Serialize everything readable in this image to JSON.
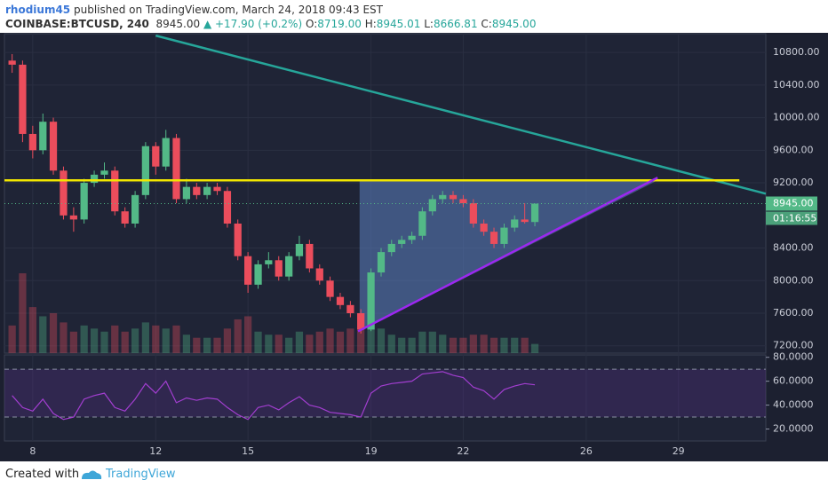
{
  "header": {
    "author": "rhodium45",
    "published": "published on TradingView.com, March 24, 2018 09:43 EST",
    "symbol": "COINBASE:BTCUSD, 240",
    "last": "8945.00",
    "change": "▲ +17.90 (+0.2%)",
    "ohlc": [
      {
        "label": "O:",
        "value": "8719.00"
      },
      {
        "label": "H:",
        "value": "8945.01"
      },
      {
        "label": "L:",
        "value": "8666.81"
      },
      {
        "label": "C:",
        "value": "8945.00"
      }
    ]
  },
  "chart_data": [
    {
      "type": "candlestick",
      "x": [
        7.33,
        7.67,
        8,
        8.33,
        8.67,
        9,
        9.33,
        9.67,
        10,
        10.33,
        10.67,
        11,
        11.33,
        11.67,
        12,
        12.33,
        12.67,
        13,
        13.33,
        13.67,
        14,
        14.33,
        14.67,
        15,
        15.33,
        15.67,
        16,
        16.33,
        16.67,
        17,
        17.33,
        17.67,
        18,
        18.33,
        18.67,
        19,
        19.33,
        19.67,
        20,
        20.33,
        20.67,
        21,
        21.33,
        21.67,
        22,
        22.33,
        22.67,
        23,
        23.33,
        23.67,
        24,
        24.33
      ],
      "open": [
        10700,
        10650,
        9800,
        9600,
        9950,
        9350,
        8800,
        8750,
        9200,
        9300,
        9350,
        8850,
        8700,
        9050,
        9650,
        9400,
        9750,
        9000,
        9150,
        9050,
        9150,
        9100,
        8700,
        8300,
        7950,
        8200,
        8250,
        8050,
        8300,
        8450,
        8150,
        8000,
        7800,
        7700,
        7600,
        7400,
        8100,
        8350,
        8450,
        8500,
        8550,
        8850,
        9000,
        9050,
        9000,
        8950,
        8700,
        8600,
        8450,
        8650,
        8750,
        8719
      ],
      "high": [
        10780,
        10700,
        9900,
        10050,
        10000,
        9400,
        8900,
        9250,
        9350,
        9450,
        9400,
        8900,
        9100,
        9700,
        9700,
        9850,
        9800,
        9250,
        9200,
        9200,
        9200,
        9150,
        8750,
        8350,
        8250,
        8350,
        8300,
        8350,
        8550,
        8500,
        8200,
        8050,
        7850,
        7750,
        7650,
        8150,
        8400,
        8500,
        8550,
        8600,
        8900,
        9050,
        9100,
        9100,
        9050,
        9000,
        8750,
        8650,
        8700,
        8800,
        8950,
        8945
      ],
      "low": [
        10550,
        9700,
        9500,
        9550,
        9300,
        8750,
        8600,
        8700,
        9150,
        9250,
        8800,
        8650,
        8650,
        9000,
        9300,
        9350,
        8950,
        8950,
        9000,
        9000,
        9050,
        8650,
        8250,
        7850,
        7900,
        8150,
        8000,
        8000,
        8250,
        8100,
        7950,
        7750,
        7650,
        7550,
        7350,
        7380,
        8050,
        8300,
        8400,
        8450,
        8500,
        8800,
        8950,
        8950,
        8900,
        8650,
        8550,
        8400,
        8400,
        8600,
        8700,
        8667
      ],
      "close": [
        10650,
        9800,
        9600,
        9950,
        9350,
        8800,
        8750,
        9200,
        9300,
        9350,
        8850,
        8700,
        9050,
        9650,
        9400,
        9750,
        9000,
        9150,
        9050,
        9150,
        9100,
        8700,
        8300,
        7950,
        8200,
        8250,
        8050,
        8300,
        8450,
        8150,
        8000,
        7800,
        7700,
        7600,
        7400,
        8100,
        8350,
        8450,
        8500,
        8550,
        8850,
        9000,
        9050,
        9000,
        8950,
        8700,
        8600,
        8450,
        8650,
        8750,
        8720,
        8945
      ],
      "volume": [
        900,
        2600,
        1500,
        1200,
        1300,
        1000,
        700,
        900,
        800,
        700,
        900,
        700,
        800,
        1000,
        900,
        800,
        900,
        600,
        500,
        500,
        500,
        800,
        1100,
        1200,
        700,
        600,
        600,
        500,
        700,
        600,
        700,
        800,
        700,
        800,
        1300,
        1400,
        800,
        600,
        500,
        500,
        700,
        700,
        600,
        500,
        500,
        600,
        600,
        500,
        500,
        500,
        500,
        300
      ],
      "up_color": "#53b987",
      "down_color": "#eb4d5c",
      "xlim": [
        7.08,
        31.84
      ],
      "xticks": [
        8,
        12,
        15,
        19,
        22,
        26,
        29
      ],
      "ylim": [
        7110,
        11030
      ],
      "yticks": [
        {
          "value": 7200,
          "label": "7200.00"
        },
        {
          "value": 7600,
          "label": "7600.00"
        },
        {
          "value": 8000,
          "label": "8000.00"
        },
        {
          "value": 8400,
          "label": "8400.00"
        },
        {
          "value": 9200,
          "label": "9200.00"
        },
        {
          "value": 9600,
          "label": "9600.00"
        },
        {
          "value": 10000,
          "label": "10000.00"
        },
        {
          "value": 10400,
          "label": "10400.00"
        },
        {
          "value": 10800,
          "label": "10800.00"
        }
      ],
      "last_price": {
        "value": 8945,
        "label": "8945.00"
      },
      "countdown": "01:16:55",
      "lines": [
        {
          "x": [
            12,
            31.84
          ],
          "y": [
            11007,
            9067
          ],
          "color": "#26a69a"
        },
        {
          "x": [
            7.08,
            30.98
          ],
          "y": [
            9230,
            9230
          ],
          "color": "#f2e600"
        },
        {
          "x": [
            18.58,
            28.32
          ],
          "y": [
            7378,
            9263
          ],
          "color": "#9c27f0"
        }
      ],
      "triangle": {
        "x": [
          18.63,
          28.32,
          18.63
        ],
        "y": [
          9230,
          9230,
          7378
        ],
        "color": "#5b7fbf"
      }
    },
    {
      "type": "line",
      "x": [
        7.33,
        7.67,
        8,
        8.33,
        8.67,
        9,
        9.33,
        9.67,
        10,
        10.33,
        10.67,
        11,
        11.33,
        11.67,
        12,
        12.33,
        12.67,
        13,
        13.33,
        13.67,
        14,
        14.33,
        14.67,
        15,
        15.33,
        15.67,
        16,
        16.33,
        16.67,
        17,
        17.33,
        17.67,
        18,
        18.33,
        18.67,
        19,
        19.33,
        19.67,
        20,
        20.33,
        20.67,
        21,
        21.33,
        21.67,
        22,
        22.33,
        22.67,
        23,
        23.33,
        23.67,
        24,
        24.33
      ],
      "values": [
        48,
        38,
        35,
        45,
        33,
        28,
        30,
        45,
        48,
        50,
        38,
        35,
        45,
        58,
        50,
        60,
        42,
        46,
        44,
        46,
        45,
        38,
        32,
        28,
        38,
        40,
        36,
        42,
        47,
        40,
        38,
        34,
        33,
        32,
        30,
        50,
        56,
        58,
        59,
        60,
        66,
        67,
        68,
        65,
        63,
        55,
        52,
        45,
        53,
        56,
        58,
        57
      ],
      "color": "#a23ed0",
      "ylim": [
        10,
        82
      ],
      "yticks": [
        {
          "value": 20,
          "label": "20.0000"
        },
        {
          "value": 40,
          "label": "40.0000"
        },
        {
          "value": 60,
          "label": "60.0000"
        },
        {
          "value": 80,
          "label": "80.0000"
        }
      ],
      "bands": [
        30,
        70
      ]
    }
  ],
  "footer": {
    "created": "Created with",
    "brand": "TradingView"
  }
}
